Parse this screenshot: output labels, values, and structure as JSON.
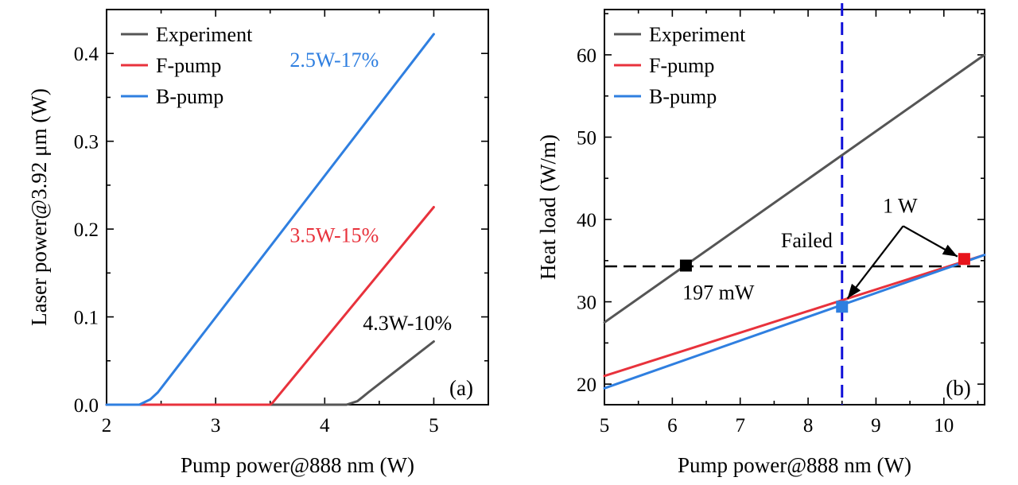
{
  "colors": {
    "experiment": "#555555",
    "f_pump": "#e8323c",
    "b_pump": "#2f7fe0",
    "vline": "#1010d8",
    "hline": "#000000",
    "marker_black": "#000000",
    "marker_blue": "#2f7fe0",
    "marker_red": "#e8141c"
  },
  "chart_data": [
    {
      "type": "line",
      "panel_label": "(a)",
      "xlabel": "Pump power@888 nm (W)",
      "ylabel": "Laser power@3.92 μm (W)",
      "xlim": [
        2,
        5.5
      ],
      "ylim": [
        0,
        0.45
      ],
      "xticks": [
        2,
        3,
        4,
        5
      ],
      "yticks": [
        0.0,
        0.1,
        0.2,
        0.3,
        0.4
      ],
      "xtick_labels": [
        "2",
        "3",
        "4",
        "5"
      ],
      "ytick_labels": [
        "0.0",
        "0.1",
        "0.2",
        "0.3",
        "0.4"
      ],
      "legend": [
        "Experiment",
        "F-pump",
        "B-pump"
      ],
      "series": [
        {
          "name": "Experiment",
          "color_key": "experiment",
          "x": [
            2.0,
            4.2,
            4.3,
            4.35,
            4.4,
            5.0
          ],
          "y": [
            0.0,
            0.0,
            0.004,
            0.009,
            0.014,
            0.072
          ]
        },
        {
          "name": "F-pump",
          "color_key": "f_pump",
          "x": [
            2.0,
            3.5,
            3.52,
            5.0
          ],
          "y": [
            0.0,
            0.0,
            0.002,
            0.225
          ]
        },
        {
          "name": "B-pump",
          "color_key": "b_pump",
          "x": [
            2.0,
            2.3,
            2.4,
            2.47,
            2.52,
            5.0
          ],
          "y": [
            0.0,
            0.0,
            0.006,
            0.014,
            0.022,
            0.422
          ]
        }
      ],
      "annotations": [
        {
          "text": "2.5W-17%",
          "color_key": "b_pump",
          "x": 3.68,
          "y": 0.385
        },
        {
          "text": "3.5W-15%",
          "color_key": "f_pump",
          "x": 3.68,
          "y": 0.185
        },
        {
          "text": "4.3W-10%",
          "color_key": "hline",
          "x": 4.35,
          "y": 0.085
        }
      ]
    },
    {
      "type": "line",
      "panel_label": "(b)",
      "xlabel": "Pump power@888 nm (W)",
      "ylabel": "Heat load (W/m)",
      "xlim": [
        5,
        10.6
      ],
      "ylim": [
        17.5,
        65.5
      ],
      "xticks": [
        5,
        6,
        7,
        8,
        9,
        10
      ],
      "yticks": [
        20,
        30,
        40,
        50,
        60
      ],
      "xtick_labels": [
        "5",
        "6",
        "7",
        "8",
        "9",
        "10"
      ],
      "ytick_labels": [
        "20",
        "30",
        "40",
        "50",
        "60"
      ],
      "legend": [
        "Experiment",
        "F-pump",
        "B-pump"
      ],
      "series": [
        {
          "name": "Experiment",
          "color_key": "experiment",
          "x": [
            5,
            10.6
          ],
          "y": [
            27.5,
            60.0
          ]
        },
        {
          "name": "F-pump",
          "color_key": "f_pump",
          "x": [
            5,
            10.6
          ],
          "y": [
            21.0,
            35.7
          ]
        },
        {
          "name": "B-pump",
          "color_key": "b_pump",
          "x": [
            5,
            10.6
          ],
          "y": [
            19.5,
            35.7
          ]
        }
      ],
      "reference_lines": [
        {
          "orientation": "horizontal",
          "value": 34.3,
          "color_key": "hline",
          "style": "dashed"
        },
        {
          "orientation": "vertical",
          "value": 8.5,
          "color_key": "vline",
          "style": "dashed"
        }
      ],
      "markers": [
        {
          "x": 6.2,
          "y": 34.4,
          "color_key": "marker_black"
        },
        {
          "x": 8.5,
          "y": 29.4,
          "color_key": "marker_blue"
        },
        {
          "x": 10.3,
          "y": 35.2,
          "color_key": "marker_red"
        }
      ],
      "annotations": [
        {
          "text": "Failed",
          "x": 7.6,
          "y": 36.6
        },
        {
          "text": "197 mW",
          "x": 6.15,
          "y": 30.3
        },
        {
          "text": "1 W",
          "x": 9.1,
          "y": 40.8
        }
      ],
      "arrows": [
        {
          "from": [
            9.4,
            39.2
          ],
          "to": [
            8.58,
            30.4
          ]
        },
        {
          "from": [
            9.4,
            39.2
          ],
          "to": [
            10.2,
            35.5
          ]
        }
      ]
    }
  ]
}
